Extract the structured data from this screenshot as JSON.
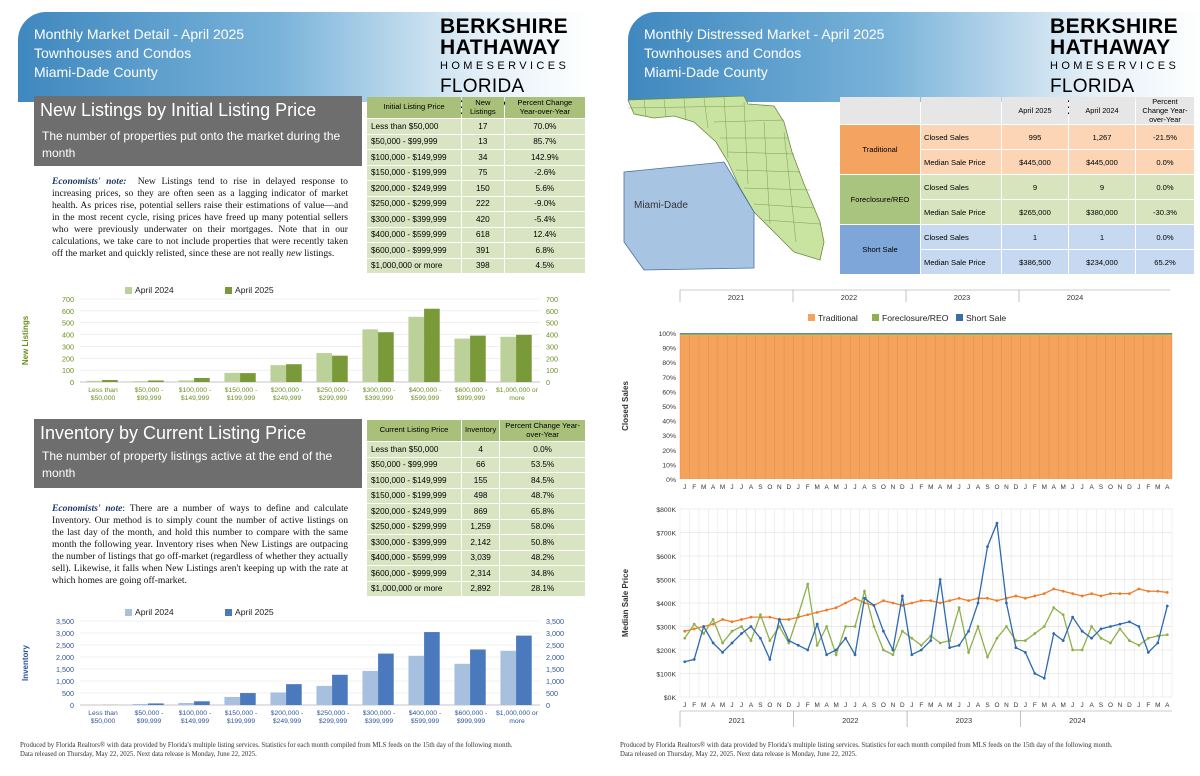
{
  "left": {
    "header": {
      "line1": "Monthly Market Detail - April 2025",
      "line2": "Townhouses and Condos",
      "line3": "Miami-Dade County"
    },
    "logo": {
      "line1": "BERKSHIRE",
      "line2": "HATHAWAY",
      "line3": "HOMESERVICES",
      "line4": "FLORIDA REALTY"
    },
    "new_listings": {
      "title": "New Listings by Initial Listing Price",
      "subtitle": "The number of properties put onto the market during the month",
      "note_label": "Economists' note:",
      "note_text": "New Listings tend to rise in delayed response to increasing prices, so they are often seen as a lagging indicator of market health. As prices rise, potential sellers raise their estimations of value—and in the most recent cycle, rising prices have freed up many potential sellers who were previously underwater on their mortgages. Note that in our calculations, we take care to not include properties that were recently taken off the market and quickly relisted, since these are not really",
      "note_italic": "new",
      "note_end": "listings.",
      "table": {
        "headers": [
          "Initial Listing Price",
          "New Listings",
          "Percent Change Year-over-Year"
        ],
        "rows": [
          [
            "Less than $50,000",
            "17",
            "70.0%"
          ],
          [
            "$50,000 - $99,999",
            "13",
            "85.7%"
          ],
          [
            "$100,000 - $149,999",
            "34",
            "142.9%"
          ],
          [
            "$150,000 - $199,999",
            "75",
            "-2.6%"
          ],
          [
            "$200,000 - $249,999",
            "150",
            "5.6%"
          ],
          [
            "$250,000 - $299,999",
            "222",
            "-9.0%"
          ],
          [
            "$300,000 - $399,999",
            "420",
            "-5.4%"
          ],
          [
            "$400,000 - $599,999",
            "618",
            "12.4%"
          ],
          [
            "$600,000 - $999,999",
            "391",
            "6.8%"
          ],
          [
            "$1,000,000 or more",
            "398",
            "4.5%"
          ]
        ]
      }
    },
    "inventory": {
      "title": "Inventory by Current Listing Price",
      "subtitle": "The number of property listings active at the end of the month",
      "note_label": "Economists' note",
      "note_text": ": There are a number of ways to define and calculate Inventory. Our method is to simply count the number of active listings on the last day of the month, and hold this number to compare with the same month the following year. Inventory rises when New Listings are outpacing the number of listings that go off-market (regardless of whether they actually sell). Likewise, it falls when New Listings aren't keeping up with the rate at which homes are going off-market.",
      "table": {
        "headers": [
          "Current Listing Price",
          "Inventory",
          "Percent Change Year-over-Year"
        ],
        "rows": [
          [
            "Less than $50,000",
            "4",
            "0.0%"
          ],
          [
            "$50,000 - $99,999",
            "66",
            "53.5%"
          ],
          [
            "$100,000 - $149,999",
            "155",
            "84.5%"
          ],
          [
            "$150,000 - $199,999",
            "498",
            "48.7%"
          ],
          [
            "$200,000 - $249,999",
            "869",
            "65.8%"
          ],
          [
            "$250,000 - $299,999",
            "1,259",
            "58.0%"
          ],
          [
            "$300,000 - $399,999",
            "2,142",
            "50.8%"
          ],
          [
            "$400,000 - $599,999",
            "3,039",
            "48.2%"
          ],
          [
            "$600,000 - $999,999",
            "2,314",
            "34.8%"
          ],
          [
            "$1,000,000 or more",
            "2,892",
            "28.1%"
          ]
        ]
      }
    },
    "footer": {
      "line1": "Produced by Florida Realtors® with data provided by Florida's multiple listing services. Statistics for each month compiled from MLS feeds on the 15th day of the following month.",
      "line2": "Data released on Thursday, May 22, 2025. Next data release is Monday, June 22, 2025."
    }
  },
  "right": {
    "header": {
      "line1": "Monthly Distressed Market - April 2025",
      "line2": "Townhouses and Condos",
      "line3": "Miami-Dade County"
    },
    "logo": {
      "line1": "BERKSHIRE",
      "line2": "HATHAWAY",
      "line3": "HOMESERVICES",
      "line4": "FLORIDA REALTY"
    },
    "map_label": "Miami-Dade",
    "distressed_table": {
      "headers": [
        "",
        "",
        "April 2025",
        "April 2024",
        "Percent Change Year-over-Year"
      ],
      "groups": [
        {
          "name": "Traditional",
          "color": "#f4a460",
          "light": "#fbd5b5",
          "rows": [
            [
              "Closed Sales",
              "995",
              "1,267",
              "-21.5%"
            ],
            [
              "Median Sale Price",
              "$445,000",
              "$445,000",
              "0.0%"
            ]
          ]
        },
        {
          "name": "Foreclosure/REO",
          "color": "#a9c47f",
          "light": "#d7e4bd",
          "rows": [
            [
              "Closed Sales",
              "9",
              "9",
              "0.0%"
            ],
            [
              "Median Sale Price",
              "$265,000",
              "$380,000",
              "-30.3%"
            ]
          ]
        },
        {
          "name": "Short Sale",
          "color": "#7ea6d9",
          "light": "#c6d9f0",
          "rows": [
            [
              "Closed Sales",
              "1",
              "1",
              "0.0%"
            ],
            [
              "Median Sale Price",
              "$386,500",
              "$234,000",
              "65.2%"
            ]
          ]
        }
      ]
    },
    "years": [
      "2021",
      "2022",
      "2023",
      "2024"
    ],
    "footer": {
      "line1": "Produced by Florida Realtors® with data provided by Florida's multiple listing services. Statistics for each month compiled from MLS feeds on the 15th day of the following month.",
      "line2": "Data released on Thursday, May 22, 2025. Next data release is Monday, June 22, 2025."
    }
  },
  "chart_data": [
    {
      "type": "bar",
      "ylabel": "New Listings",
      "ylim": [
        0,
        700
      ],
      "yticks": [
        "0",
        "100",
        "200",
        "300",
        "400",
        "500",
        "600",
        "700"
      ],
      "categories": [
        "Less than $50,000",
        "$50,000 - $99,999",
        "$100,000 - $149,999",
        "$150,000 - $199,999",
        "$200,000 - $249,999",
        "$250,000 - $299,999",
        "$300,000 - $399,999",
        "$400,000 - $599,999",
        "$600,000 - $999,999",
        "$1,000,000 or more"
      ],
      "series": [
        {
          "name": "April 2024",
          "color": "#bcd09a",
          "values": [
            10,
            7,
            14,
            77,
            142,
            244,
            444,
            550,
            366,
            381
          ]
        },
        {
          "name": "April 2025",
          "color": "#7a9a3a",
          "values": [
            17,
            13,
            34,
            75,
            150,
            222,
            420,
            618,
            391,
            398
          ]
        }
      ]
    },
    {
      "type": "bar",
      "ylabel": "Inventory",
      "ylim": [
        0,
        3500
      ],
      "yticks": [
        "0",
        "500",
        "1,000",
        "1,500",
        "2,000",
        "2,500",
        "3,000",
        "3,500"
      ],
      "categories": [
        "Less than $50,000",
        "$50,000 - $99,999",
        "$100,000 - $149,999",
        "$150,000 - $199,999",
        "$200,000 - $249,999",
        "$250,000 - $299,999",
        "$300,000 - $399,999",
        "$400,000 - $599,999",
        "$600,000 - $999,999",
        "$1,000,000 or more"
      ],
      "series": [
        {
          "name": "April 2024",
          "color": "#a8c0e0",
          "values": [
            4,
            43,
            84,
            335,
            524,
            797,
            1420,
            2050,
            1717,
            2258
          ]
        },
        {
          "name": "April 2025",
          "color": "#4a79bd",
          "values": [
            4,
            66,
            155,
            498,
            869,
            1259,
            2142,
            3039,
            2314,
            2892
          ]
        }
      ]
    },
    {
      "type": "area",
      "ylabel": "Closed Sales",
      "ylim": [
        0,
        100
      ],
      "yticks": [
        "0%",
        "10%",
        "20%",
        "30%",
        "40%",
        "50%",
        "60%",
        "70%",
        "80%",
        "90%",
        "100%"
      ],
      "months": [
        "J",
        "F",
        "M",
        "A",
        "M",
        "J",
        "J",
        "A",
        "S",
        "O",
        "N",
        "D",
        "J",
        "F",
        "M",
        "A",
        "M",
        "J",
        "J",
        "A",
        "S",
        "O",
        "N",
        "D",
        "J",
        "F",
        "M",
        "A",
        "M",
        "J",
        "J",
        "A",
        "S",
        "O",
        "N",
        "D",
        "J",
        "F",
        "M",
        "A",
        "M",
        "J",
        "J",
        "A",
        "S",
        "O",
        "N",
        "D",
        "J",
        "F",
        "M",
        "A"
      ],
      "legend": [
        "Traditional",
        "Foreclosure/REO",
        "Short Sale"
      ],
      "series": [
        {
          "name": "Traditional",
          "color": "#f5a25d",
          "value": 98.5
        },
        {
          "name": "Foreclosure/REO",
          "color": "#8fb04a",
          "value": 1.0
        },
        {
          "name": "Short Sale",
          "color": "#3a6ea5",
          "value": 0.5
        }
      ]
    },
    {
      "type": "line",
      "ylabel": "Median Sale Price",
      "ylim": [
        0,
        800000
      ],
      "yticks": [
        "$0K",
        "$100K",
        "$200K",
        "$300K",
        "$400K",
        "$500K",
        "$600K",
        "$700K",
        "$800K"
      ],
      "series": [
        {
          "name": "Traditional",
          "color": "#f07c28",
          "values": [
            280,
            290,
            300,
            310,
            330,
            320,
            330,
            340,
            340,
            340,
            330,
            330,
            340,
            350,
            360,
            370,
            380,
            400,
            420,
            400,
            390,
            410,
            400,
            390,
            400,
            410,
            410,
            400,
            410,
            420,
            410,
            420,
            420,
            410,
            420,
            430,
            420,
            430,
            440,
            460,
            450,
            440,
            430,
            440,
            430,
            440,
            440,
            440,
            460,
            450,
            450,
            445
          ]
        },
        {
          "name": "Foreclosure/REO",
          "color": "#8fb04a",
          "values": [
            250,
            310,
            270,
            330,
            230,
            280,
            300,
            240,
            350,
            240,
            300,
            230,
            350,
            480,
            220,
            300,
            180,
            300,
            300,
            450,
            300,
            200,
            180,
            280,
            250,
            220,
            260,
            230,
            240,
            380,
            190,
            300,
            170,
            250,
            300,
            240,
            240,
            270,
            300,
            380,
            350,
            200,
            200,
            300,
            250,
            230,
            290,
            240,
            220,
            250,
            260,
            265
          ]
        },
        {
          "name": "Short Sale",
          "color": "#2e6ab0",
          "values": [
            150,
            160,
            300,
            230,
            190,
            230,
            270,
            300,
            250,
            160,
            330,
            240,
            220,
            200,
            310,
            180,
            200,
            250,
            180,
            420,
            390,
            280,
            200,
            430,
            180,
            200,
            240,
            500,
            210,
            220,
            280,
            400,
            640,
            740,
            400,
            210,
            190,
            100,
            80,
            270,
            240,
            340,
            280,
            250,
            290,
            300,
            310,
            320,
            300,
            190,
            230,
            387
          ]
        }
      ]
    }
  ]
}
